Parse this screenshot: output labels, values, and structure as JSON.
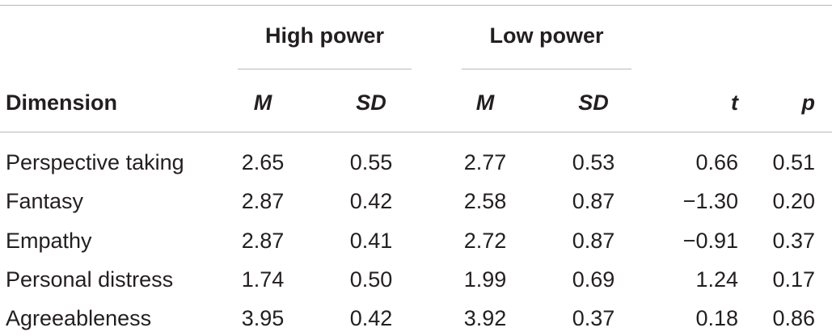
{
  "table": {
    "groups": {
      "high": "High power",
      "low": "Low power"
    },
    "headers": {
      "dimension": "Dimension",
      "high_m": "M",
      "high_sd": "SD",
      "low_m": "M",
      "low_sd": "SD",
      "t": "t",
      "p": "p"
    },
    "rows": [
      {
        "dimension": "Perspective taking",
        "high_m": "2.65",
        "high_sd": "0.55",
        "low_m": "2.77",
        "low_sd": "0.53",
        "t": "0.66",
        "p": "0.51"
      },
      {
        "dimension": "Fantasy",
        "high_m": "2.87",
        "high_sd": "0.42",
        "low_m": "2.58",
        "low_sd": "0.87",
        "t": "−1.30",
        "p": "0.20"
      },
      {
        "dimension": "Empathy",
        "high_m": "2.87",
        "high_sd": "0.41",
        "low_m": "2.72",
        "low_sd": "0.87",
        "t": "−0.91",
        "p": "0.37"
      },
      {
        "dimension": "Personal distress",
        "high_m": "1.74",
        "high_sd": "0.50",
        "low_m": "1.99",
        "low_sd": "0.69",
        "t": "1.24",
        "p": "0.17"
      },
      {
        "dimension": "Agreeableness",
        "high_m": "3.95",
        "high_sd": "0.42",
        "low_m": "3.92",
        "low_sd": "0.37",
        "t": "0.18",
        "p": "0.86"
      }
    ]
  }
}
